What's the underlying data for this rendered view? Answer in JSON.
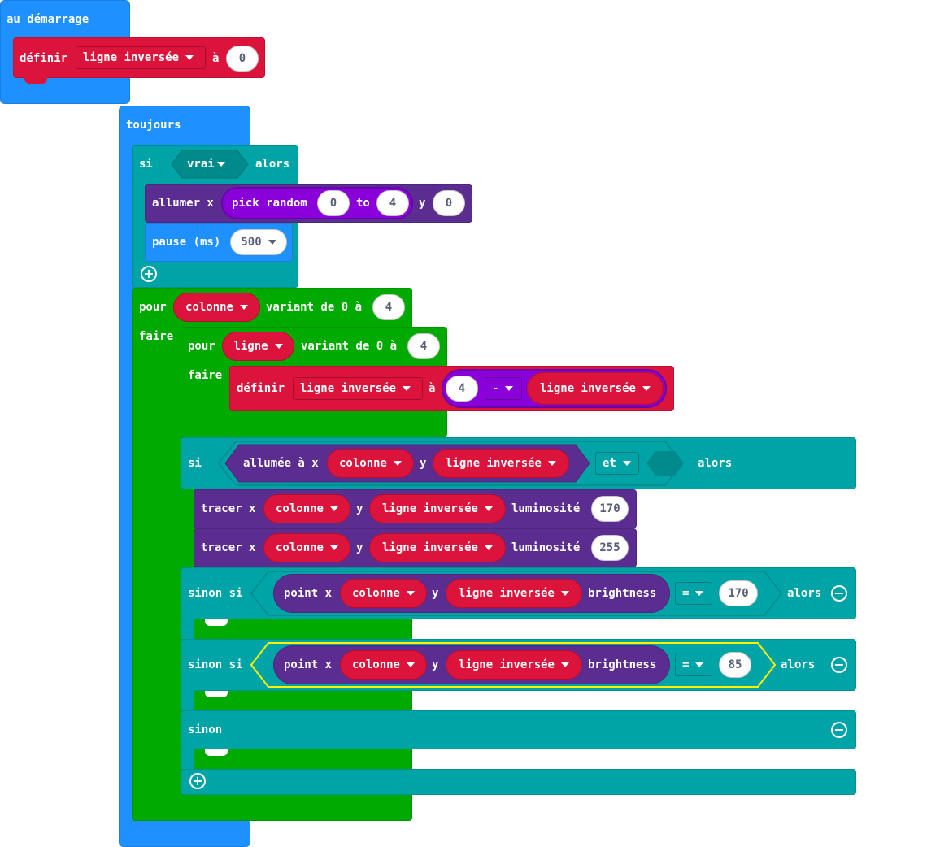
{
  "start": {
    "hat": "au démarrage",
    "set_label": "définir",
    "var": "ligne inversée",
    "to": "à",
    "value": "0"
  },
  "forever": {
    "hat": "toujours",
    "if1": {
      "si": "si",
      "cond": "vrai",
      "alors": "alors"
    },
    "plot": {
      "label": "allumer x",
      "random": "pick random",
      "from": "0",
      "to_label": "to",
      "to": "4",
      "y_label": "y",
      "y": "0"
    },
    "pause": {
      "label": "pause (ms)",
      "value": "500"
    },
    "for_outer": {
      "pour": "pour",
      "var": "colonne",
      "range": "variant de 0 à",
      "max": "4",
      "faire": "faire"
    },
    "for_inner": {
      "pour": "pour",
      "var": "ligne",
      "range": "variant de 0 à",
      "max": "4",
      "faire": "faire"
    },
    "set2": {
      "label": "définir",
      "var": "ligne inversée",
      "to": "à",
      "num": "4",
      "op": "-",
      "rhs": "ligne inversée"
    },
    "if2": {
      "si": "si",
      "point": "allumée à x",
      "x": "colonne",
      "y_label": "y",
      "y": "ligne inversée",
      "and": "et",
      "alors": "alors"
    },
    "plot1": {
      "label": "tracer x",
      "x": "colonne",
      "y_label": "y",
      "y": "ligne inversée",
      "lum": "luminosité",
      "value": "170"
    },
    "plot2": {
      "label": "tracer x",
      "x": "colonne",
      "y_label": "y",
      "y": "ligne inversée",
      "lum": "luminosité",
      "value": "255"
    },
    "elif1": {
      "label": "sinon si",
      "point": "point x",
      "x": "colonne",
      "y_label": "y",
      "y": "ligne inversée",
      "bright": "brightness",
      "op": "=",
      "value": "170",
      "alors": "alors"
    },
    "elif2": {
      "label": "sinon si",
      "point": "point x",
      "x": "colonne",
      "y_label": "y",
      "y": "ligne inversée",
      "bright": "brightness",
      "op": "=",
      "value": "85",
      "alors": "alors"
    },
    "else": {
      "label": "sinon"
    }
  },
  "colors": {
    "events": "#1e90ff",
    "variables": "#dc143c",
    "logic": "#00a4a6",
    "loops": "#00aa00",
    "led": "#5c2d91",
    "math": "#8a00d9"
  },
  "icons": [
    "plus-icon",
    "minus-icon",
    "dropdown-caret-icon"
  ]
}
